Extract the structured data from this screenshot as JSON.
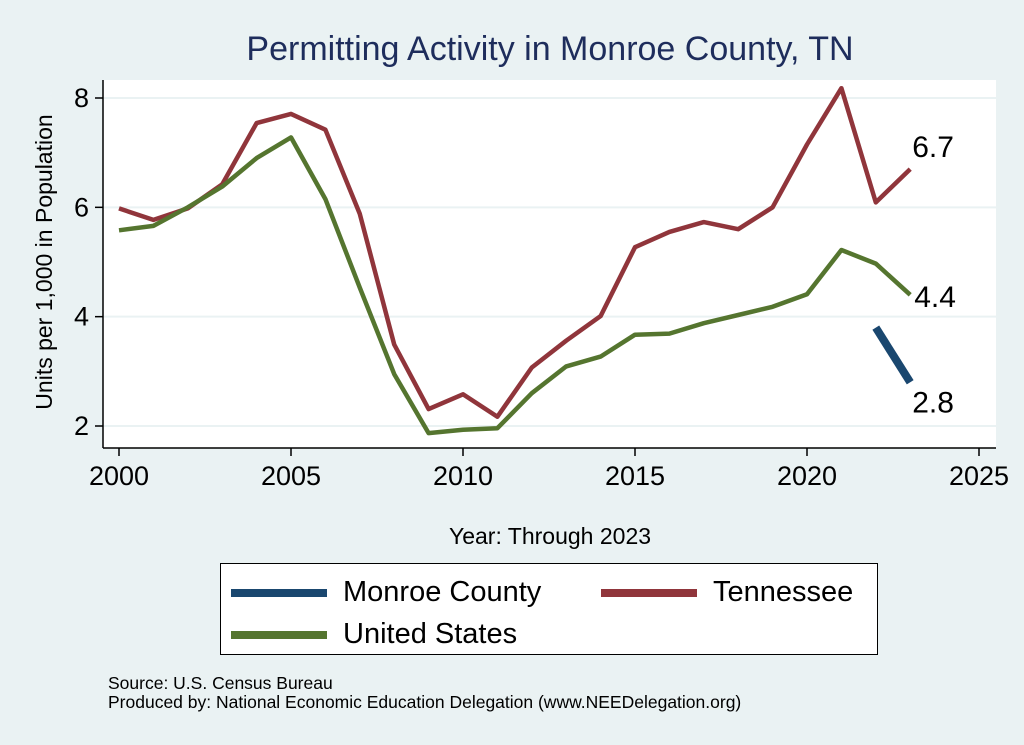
{
  "chart_data": {
    "type": "line",
    "title": "Permitting Activity in Monroe County, TN",
    "xlabel": "Year: Through 2023",
    "ylabel": "Units per 1,000 in Population",
    "xlim": [
      2000,
      2025
    ],
    "ylim": [
      1.75,
      8.5
    ],
    "xticks": [
      2000,
      2005,
      2010,
      2015,
      2020,
      2025
    ],
    "yticks": [
      2,
      4,
      6,
      8
    ],
    "grid": true,
    "legend_position": "bottom",
    "series": [
      {
        "name": "Monroe County",
        "color": "#1a476f",
        "x": [
          2022,
          2023
        ],
        "y": [
          3.8,
          2.8
        ],
        "end_label": "2.8"
      },
      {
        "name": "Tennessee",
        "color": "#90353b",
        "x": [
          2000,
          2001,
          2002,
          2003,
          2004,
          2005,
          2006,
          2007,
          2008,
          2009,
          2010,
          2011,
          2012,
          2013,
          2014,
          2015,
          2016,
          2017,
          2018,
          2019,
          2020,
          2021,
          2022,
          2023
        ],
        "y": [
          5.98,
          5.77,
          5.98,
          6.42,
          7.54,
          7.71,
          7.42,
          5.88,
          3.49,
          2.31,
          2.58,
          2.17,
          3.07,
          3.56,
          4.01,
          5.27,
          5.55,
          5.73,
          5.6,
          6.0,
          7.15,
          8.18,
          6.09,
          6.7
        ],
        "end_label": "6.7"
      },
      {
        "name": "United States",
        "color": "#55752f",
        "x": [
          2000,
          2001,
          2002,
          2003,
          2004,
          2005,
          2006,
          2007,
          2008,
          2009,
          2010,
          2011,
          2012,
          2013,
          2014,
          2015,
          2016,
          2017,
          2018,
          2019,
          2020,
          2021,
          2022,
          2023
        ],
        "y": [
          5.58,
          5.66,
          6.0,
          6.38,
          6.9,
          7.28,
          6.15,
          4.53,
          2.95,
          1.87,
          1.93,
          1.96,
          2.6,
          3.09,
          3.27,
          3.67,
          3.69,
          3.88,
          4.03,
          4.18,
          4.41,
          5.22,
          4.97,
          4.4
        ],
        "end_label": "4.4"
      }
    ]
  },
  "legend": {
    "items": [
      {
        "label": "Monroe County",
        "color": "#1a476f"
      },
      {
        "label": "Tennessee",
        "color": "#90353b"
      },
      {
        "label": "United States",
        "color": "#55752f"
      }
    ]
  },
  "footnotes": {
    "source": "Source: U.S. Census Bureau",
    "produced": "Produced by: National Economic Education Delegation (www.NEEDelegation.org)"
  },
  "colors": {
    "background": "#eaf2f3",
    "plot_background": "#ffffff",
    "title": "#1e2d5c"
  }
}
